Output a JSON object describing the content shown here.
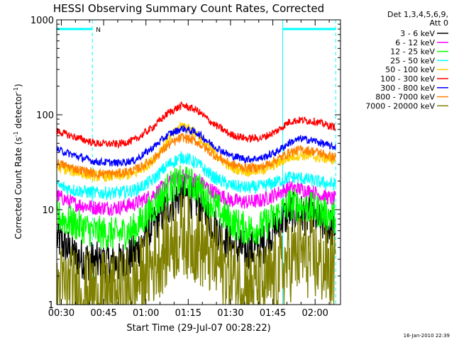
{
  "chart_data": {
    "type": "line",
    "title": "HESSI Observing Summary Count Rates, Corrected",
    "ylabel_parts": [
      "Corrected Count Rate (s",
      "-1",
      " detector",
      "-1",
      ")"
    ],
    "xlabel": "Start Time (29-Jul-07 00:28:22)",
    "y_scale": "log",
    "ylim": [
      1,
      1000
    ],
    "y_ticks": [
      1,
      10,
      100,
      1000
    ],
    "y_tick_labels": [
      "1",
      "10",
      "100",
      "1000"
    ],
    "xlim_minutes": [
      28.37,
      129.0
    ],
    "x_ticks_minutes": [
      30,
      45,
      60,
      75,
      90,
      105,
      120
    ],
    "x_tick_labels": [
      "00:30",
      "00:45",
      "01:00",
      "01:15",
      "01:30",
      "01:45",
      "02:00"
    ],
    "x_grid": false,
    "y_grid": false,
    "legend_placement": "right-top",
    "legend_header": [
      "Det 1,3,4,5,6,9,",
      "Att 0"
    ],
    "night_intervals": [
      [
        28.37,
        41.0
      ],
      [
        108.5,
        127.3
      ]
    ],
    "night_flag_label": "N",
    "guide_color": "#00ffff",
    "timestamp": "16-Jan-2010 22:39",
    "series": [
      {
        "name": "3 - 6 keV",
        "color": "#000000",
        "values": [
          [
            28.5,
            5.0
          ],
          [
            35,
            3.2
          ],
          [
            42,
            2.8
          ],
          [
            50,
            2.7
          ],
          [
            56,
            3.4
          ],
          [
            62,
            6.5
          ],
          [
            68,
            11.0
          ],
          [
            73,
            14.5
          ],
          [
            78,
            12.5
          ],
          [
            84,
            7.0
          ],
          [
            90,
            4.2
          ],
          [
            96,
            3.6
          ],
          [
            101,
            4.0
          ],
          [
            106,
            6.5
          ],
          [
            111,
            9.5
          ],
          [
            115,
            9.0
          ],
          [
            120,
            8.0
          ],
          [
            126,
            6.3
          ]
        ]
      },
      {
        "name": "6 - 12 keV",
        "color": "#ff00ff",
        "values": [
          [
            28.5,
            14.0
          ],
          [
            35,
            11.5
          ],
          [
            42,
            10.5
          ],
          [
            50,
            10.5
          ],
          [
            56,
            11.5
          ],
          [
            62,
            14.0
          ],
          [
            68,
            19.0
          ],
          [
            73,
            22.5
          ],
          [
            78,
            20.5
          ],
          [
            84,
            15.5
          ],
          [
            90,
            12.5
          ],
          [
            96,
            12.0
          ],
          [
            101,
            12.5
          ],
          [
            106,
            14.5
          ],
          [
            111,
            17.0
          ],
          [
            115,
            16.5
          ],
          [
            120,
            15.0
          ],
          [
            126,
            13.0
          ]
        ]
      },
      {
        "name": "12 - 25 keV",
        "color": "#00ff00",
        "values": [
          [
            28.5,
            8.5
          ],
          [
            35,
            7.0
          ],
          [
            42,
            5.8
          ],
          [
            50,
            5.5
          ],
          [
            56,
            6.2
          ],
          [
            62,
            10.0
          ],
          [
            68,
            17.0
          ],
          [
            73,
            20.0
          ],
          [
            78,
            17.5
          ],
          [
            84,
            11.0
          ],
          [
            90,
            7.5
          ],
          [
            96,
            6.2
          ],
          [
            101,
            6.5
          ],
          [
            106,
            8.5
          ],
          [
            111,
            11.5
          ],
          [
            115,
            11.0
          ],
          [
            120,
            10.0
          ],
          [
            126,
            8.5
          ]
        ]
      },
      {
        "name": "25 - 50 keV",
        "color": "#00ffff",
        "values": [
          [
            28.5,
            18.0
          ],
          [
            35,
            16.0
          ],
          [
            42,
            15.0
          ],
          [
            50,
            15.0
          ],
          [
            56,
            16.0
          ],
          [
            62,
            20.0
          ],
          [
            68,
            30.0
          ],
          [
            73,
            36.0
          ],
          [
            78,
            31.0
          ],
          [
            84,
            22.0
          ],
          [
            90,
            18.0
          ],
          [
            96,
            17.0
          ],
          [
            101,
            17.5
          ],
          [
            106,
            19.5
          ],
          [
            111,
            22.0
          ],
          [
            115,
            21.5
          ],
          [
            120,
            20.0
          ],
          [
            126,
            18.5
          ]
        ]
      },
      {
        "name": "50 - 100 keV",
        "color": "#ffd000",
        "values": [
          [
            28.5,
            28.0
          ],
          [
            35,
            25.0
          ],
          [
            42,
            22.5
          ],
          [
            50,
            22.5
          ],
          [
            56,
            24.0
          ],
          [
            62,
            32.0
          ],
          [
            68,
            55.0
          ],
          [
            73,
            78.0
          ],
          [
            78,
            63.0
          ],
          [
            84,
            40.0
          ],
          [
            90,
            28.0
          ],
          [
            96,
            25.5
          ],
          [
            101,
            26.0
          ],
          [
            106,
            30.0
          ],
          [
            111,
            36.0
          ],
          [
            115,
            38.0
          ],
          [
            120,
            36.0
          ],
          [
            126,
            34.0
          ]
        ]
      },
      {
        "name": "100 - 300 keV",
        "color": "#ff0000",
        "values": [
          [
            28.5,
            67.0
          ],
          [
            35,
            58.0
          ],
          [
            42,
            50.0
          ],
          [
            50,
            49.0
          ],
          [
            56,
            54.0
          ],
          [
            62,
            72.0
          ],
          [
            68,
            105.0
          ],
          [
            73,
            126.0
          ],
          [
            78,
            112.0
          ],
          [
            84,
            80.0
          ],
          [
            90,
            62.0
          ],
          [
            96,
            56.0
          ],
          [
            101,
            57.0
          ],
          [
            106,
            66.0
          ],
          [
            111,
            85.0
          ],
          [
            115,
            88.0
          ],
          [
            120,
            85.0
          ],
          [
            126,
            75.0
          ]
        ]
      },
      {
        "name": "300 - 800 keV",
        "color": "#0000ff",
        "values": [
          [
            28.5,
            43.0
          ],
          [
            35,
            37.0
          ],
          [
            42,
            32.0
          ],
          [
            50,
            31.0
          ],
          [
            56,
            33.0
          ],
          [
            62,
            44.0
          ],
          [
            68,
            62.0
          ],
          [
            73,
            72.0
          ],
          [
            78,
            65.0
          ],
          [
            84,
            47.0
          ],
          [
            90,
            37.0
          ],
          [
            96,
            34.0
          ],
          [
            101,
            35.0
          ],
          [
            106,
            40.0
          ],
          [
            111,
            51.0
          ],
          [
            115,
            56.0
          ],
          [
            120,
            53.0
          ],
          [
            126,
            46.0
          ]
        ]
      },
      {
        "name": "800 - 7000 keV",
        "color": "#ff8000",
        "values": [
          [
            28.5,
            31.0
          ],
          [
            35,
            27.0
          ],
          [
            42,
            24.0
          ],
          [
            50,
            24.0
          ],
          [
            56,
            26.0
          ],
          [
            62,
            33.0
          ],
          [
            68,
            48.0
          ],
          [
            73,
            58.0
          ],
          [
            78,
            52.0
          ],
          [
            84,
            38.0
          ],
          [
            90,
            30.0
          ],
          [
            96,
            27.5
          ],
          [
            101,
            28.0
          ],
          [
            106,
            33.0
          ],
          [
            111,
            40.0
          ],
          [
            115,
            43.0
          ],
          [
            120,
            41.0
          ],
          [
            126,
            36.0
          ]
        ]
      },
      {
        "name": "7000 - 20000 keV",
        "color": "#808000",
        "values": [
          [
            28.5,
            1.6
          ],
          [
            35,
            1.5
          ],
          [
            42,
            1.3
          ],
          [
            50,
            1.3
          ],
          [
            56,
            1.6
          ],
          [
            62,
            2.6
          ],
          [
            68,
            4.3
          ],
          [
            73,
            5.6
          ],
          [
            78,
            4.5
          ],
          [
            84,
            3.0
          ],
          [
            90,
            2.0
          ],
          [
            96,
            1.6
          ],
          [
            101,
            1.5
          ],
          [
            106,
            2.0
          ],
          [
            111,
            2.9
          ],
          [
            115,
            3.4
          ],
          [
            120,
            2.9
          ],
          [
            126,
            2.3
          ]
        ]
      }
    ]
  }
}
